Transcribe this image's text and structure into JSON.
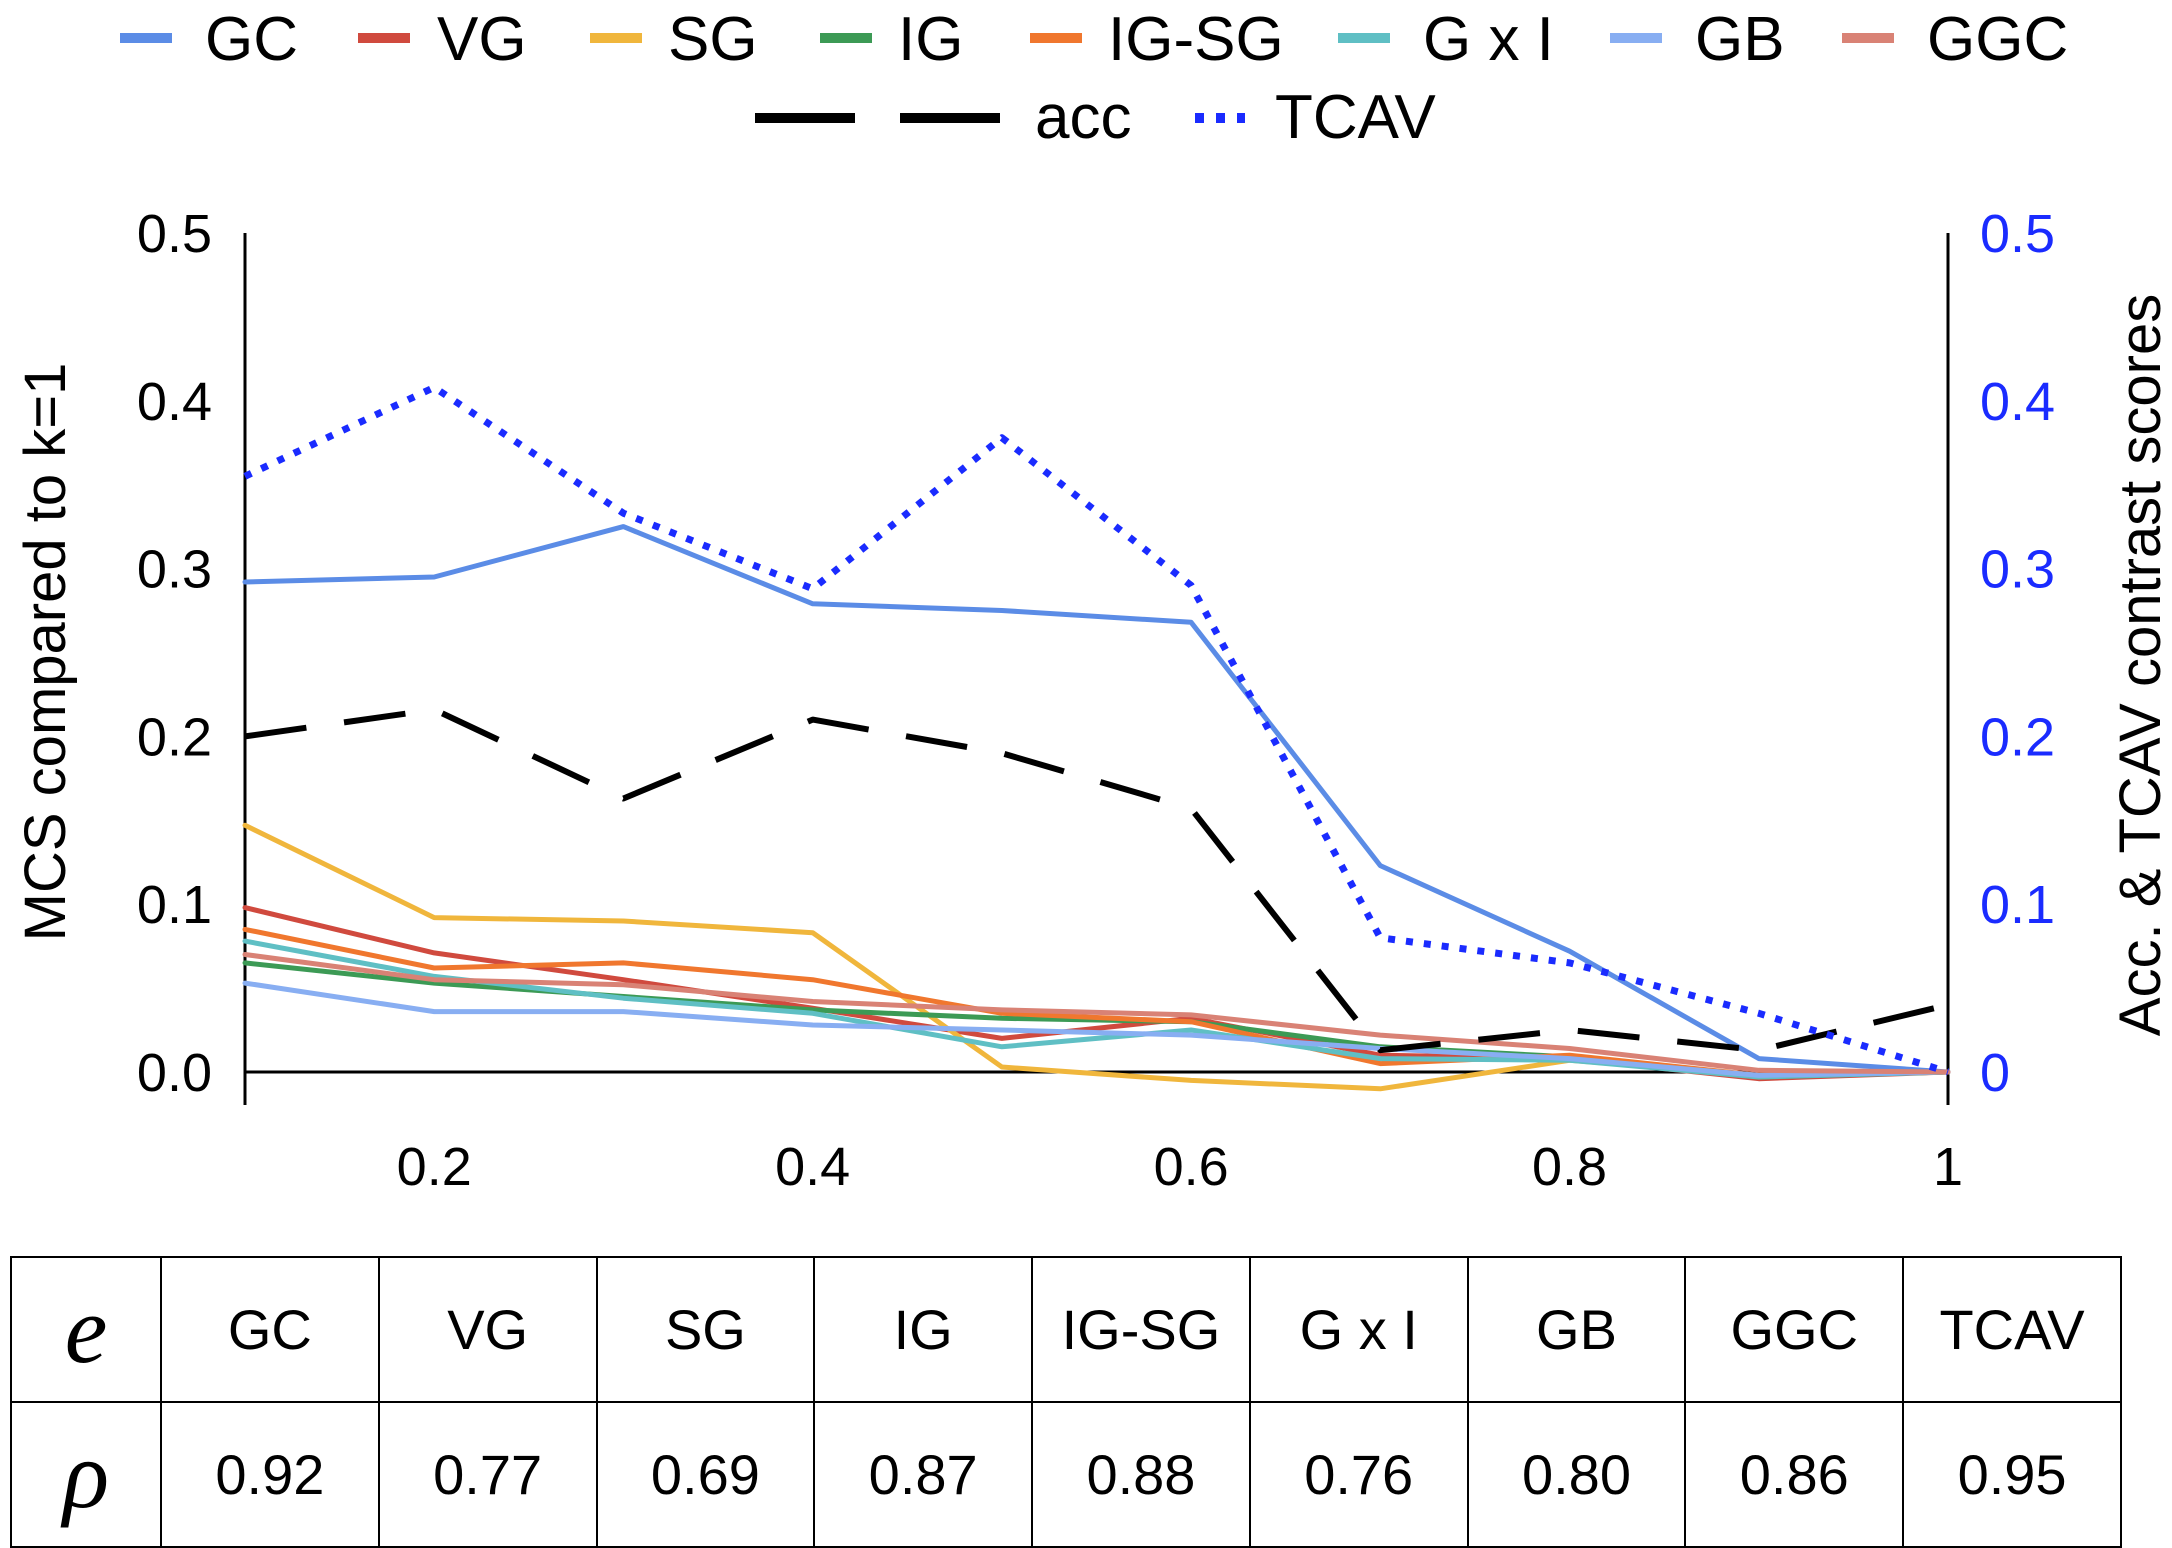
{
  "chart_data": {
    "type": "line",
    "title": "",
    "xlabel": "",
    "ylabel": "MCS compared to k=1",
    "y2label": "Acc. & TCAV contrast scores",
    "xlim": [
      0.1,
      1.0
    ],
    "ylim": [
      0.0,
      0.5
    ],
    "y2lim": [
      0.0,
      0.5
    ],
    "x_ticks": [
      "0.2",
      "0.4",
      "0.6",
      "0.8",
      "1"
    ],
    "x_tick_values": [
      0.2,
      0.4,
      0.6,
      0.8,
      1.0
    ],
    "y_ticks": [
      "0.0",
      "0.1",
      "0.2",
      "0.3",
      "0.4",
      "0.5"
    ],
    "y2_ticks": [
      "0",
      "0.1",
      "0.2",
      "0.3",
      "0.4",
      "0.5"
    ],
    "grid": false,
    "legend_position": "top",
    "x": [
      0.1,
      0.2,
      0.3,
      0.4,
      0.5,
      0.6,
      0.7,
      0.8,
      0.9,
      1.0
    ],
    "series": [
      {
        "name": "GC",
        "color": "#5b8ce6",
        "dash": "solid",
        "axis": "left",
        "values": [
          0.292,
          0.295,
          0.325,
          0.279,
          0.275,
          0.268,
          0.123,
          0.072,
          0.008,
          0.0
        ]
      },
      {
        "name": "VG",
        "color": "#d04a3e",
        "dash": "solid",
        "axis": "left",
        "values": [
          0.098,
          0.071,
          0.055,
          0.038,
          0.02,
          0.032,
          0.01,
          0.008,
          -0.004,
          0.0
        ]
      },
      {
        "name": "SG",
        "color": "#f0b63c",
        "dash": "solid",
        "axis": "left",
        "values": [
          0.147,
          0.092,
          0.09,
          0.083,
          0.003,
          -0.005,
          -0.01,
          0.007,
          -0.002,
          0.0
        ]
      },
      {
        "name": "IG",
        "color": "#3c9a55",
        "dash": "solid",
        "axis": "left",
        "values": [
          0.065,
          0.053,
          0.045,
          0.037,
          0.032,
          0.03,
          0.015,
          0.009,
          -0.003,
          0.0
        ]
      },
      {
        "name": "IG-SG",
        "color": "#f0772e",
        "dash": "solid",
        "axis": "left",
        "values": [
          0.085,
          0.062,
          0.065,
          0.055,
          0.035,
          0.03,
          0.005,
          0.01,
          -0.002,
          0.0
        ]
      },
      {
        "name": "G x I",
        "color": "#5fbfc4",
        "dash": "solid",
        "axis": "left",
        "values": [
          0.078,
          0.057,
          0.044,
          0.035,
          0.015,
          0.025,
          0.008,
          0.007,
          -0.003,
          0.0
        ]
      },
      {
        "name": "GB",
        "color": "#88aef2",
        "dash": "solid",
        "axis": "left",
        "values": [
          0.053,
          0.036,
          0.036,
          0.028,
          0.025,
          0.022,
          0.014,
          0.008,
          -0.002,
          0.0
        ]
      },
      {
        "name": "GGC",
        "color": "#d98275",
        "dash": "solid",
        "axis": "left",
        "values": [
          0.07,
          0.055,
          0.052,
          0.042,
          0.037,
          0.034,
          0.022,
          0.014,
          0.001,
          0.0
        ]
      },
      {
        "name": "acc",
        "color": "#000000",
        "dash": "dashed",
        "axis": "right",
        "values": [
          0.2,
          0.216,
          0.163,
          0.21,
          0.19,
          0.157,
          0.013,
          0.025,
          0.013,
          0.04
        ]
      },
      {
        "name": "TCAV",
        "color": "#1a2bff",
        "dash": "dotted",
        "axis": "right",
        "values": [
          0.355,
          0.408,
          0.333,
          0.288,
          0.378,
          0.29,
          0.08,
          0.065,
          0.035,
          0.0
        ]
      }
    ]
  },
  "table": {
    "header_symbol": "e",
    "value_symbol": "ρ",
    "methods": [
      "GC",
      "VG",
      "SG",
      "IG",
      "IG-SG",
      "G x I",
      "GB",
      "GGC",
      "TCAV"
    ],
    "rho": [
      "0.92",
      "0.77",
      "0.69",
      "0.87",
      "0.88",
      "0.76",
      "0.80",
      "0.86",
      "0.95"
    ]
  }
}
